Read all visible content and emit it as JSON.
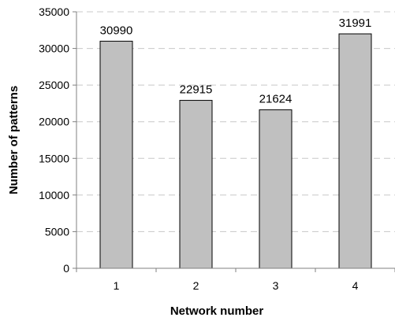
{
  "chart_data": {
    "type": "bar",
    "title": "",
    "xlabel": "Network number",
    "ylabel": "Number of patterns",
    "categories": [
      "1",
      "2",
      "3",
      "4"
    ],
    "values": [
      30990,
      22915,
      21624,
      31991
    ],
    "data_labels": [
      "30990",
      "22915",
      "21624",
      "31991"
    ],
    "ylim": [
      0,
      35000
    ],
    "yticks": [
      0,
      5000,
      10000,
      15000,
      20000,
      25000,
      30000,
      35000
    ],
    "ytick_labels": [
      "0",
      "5000",
      "10000",
      "15000",
      "20000",
      "25000",
      "30000",
      "35000"
    ],
    "grid": "horizontal dashed",
    "legend": "none",
    "colors": {
      "bar_fill": "#c0c0c0",
      "bar_stroke": "#000000",
      "grid": "#c8c8c8",
      "axis": "#808080"
    }
  }
}
